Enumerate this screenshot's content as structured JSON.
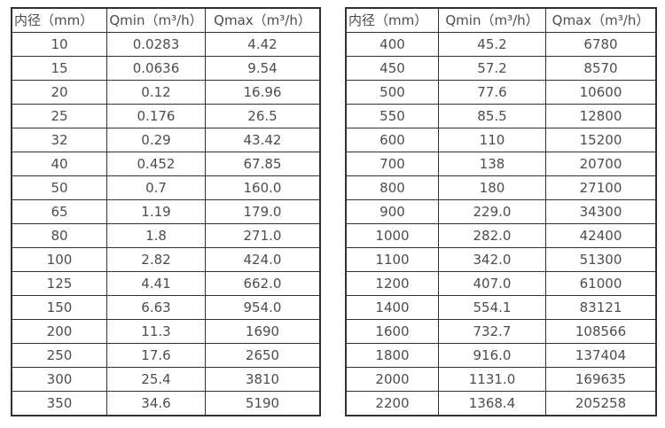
{
  "colors": {
    "background": "#ffffff",
    "border": "#323232",
    "text": "#4d4d4d"
  },
  "chart_data": [
    {
      "type": "table",
      "title": "",
      "columns": [
        "内径（mm）",
        "Qmin（m³/h）",
        "Qmax（m³/h）"
      ],
      "rows": [
        [
          "10",
          "0.0283",
          "4.42"
        ],
        [
          "15",
          "0.0636",
          "9.54"
        ],
        [
          "20",
          "0.12",
          "16.96"
        ],
        [
          "25",
          "0.176",
          "26.5"
        ],
        [
          "32",
          "0.29",
          "43.42"
        ],
        [
          "40",
          "0.452",
          "67.85"
        ],
        [
          "50",
          "0.7",
          "160.0"
        ],
        [
          "65",
          "1.19",
          "179.0"
        ],
        [
          "80",
          "1.8",
          "271.0"
        ],
        [
          "100",
          "2.82",
          "424.0"
        ],
        [
          "125",
          "4.41",
          "662.0"
        ],
        [
          "150",
          "6.63",
          "954.0"
        ],
        [
          "200",
          "11.3",
          "1690"
        ],
        [
          "250",
          "17.6",
          "2650"
        ],
        [
          "300",
          "25.4",
          "3810"
        ],
        [
          "350",
          "34.6",
          "5190"
        ]
      ]
    },
    {
      "type": "table",
      "title": "",
      "columns": [
        "内径（mm）",
        "Qmin（m³/h）",
        "Qmax（m³/h）"
      ],
      "rows": [
        [
          "400",
          "45.2",
          "6780"
        ],
        [
          "450",
          "57.2",
          "8570"
        ],
        [
          "500",
          "77.6",
          "10600"
        ],
        [
          "550",
          "85.5",
          "12800"
        ],
        [
          "600",
          "110",
          "15200"
        ],
        [
          "700",
          "138",
          "20700"
        ],
        [
          "800",
          "180",
          "27100"
        ],
        [
          "900",
          "229.0",
          "34300"
        ],
        [
          "1000",
          "282.0",
          "42400"
        ],
        [
          "1100",
          "342.0",
          "51300"
        ],
        [
          "1200",
          "407.0",
          "61000"
        ],
        [
          "1400",
          "554.1",
          "83121"
        ],
        [
          "1600",
          "732.7",
          "108566"
        ],
        [
          "1800",
          "916.0",
          "137404"
        ],
        [
          "2000",
          "1131.0",
          "169635"
        ],
        [
          "2200",
          "1368.4",
          "205258"
        ]
      ]
    }
  ]
}
